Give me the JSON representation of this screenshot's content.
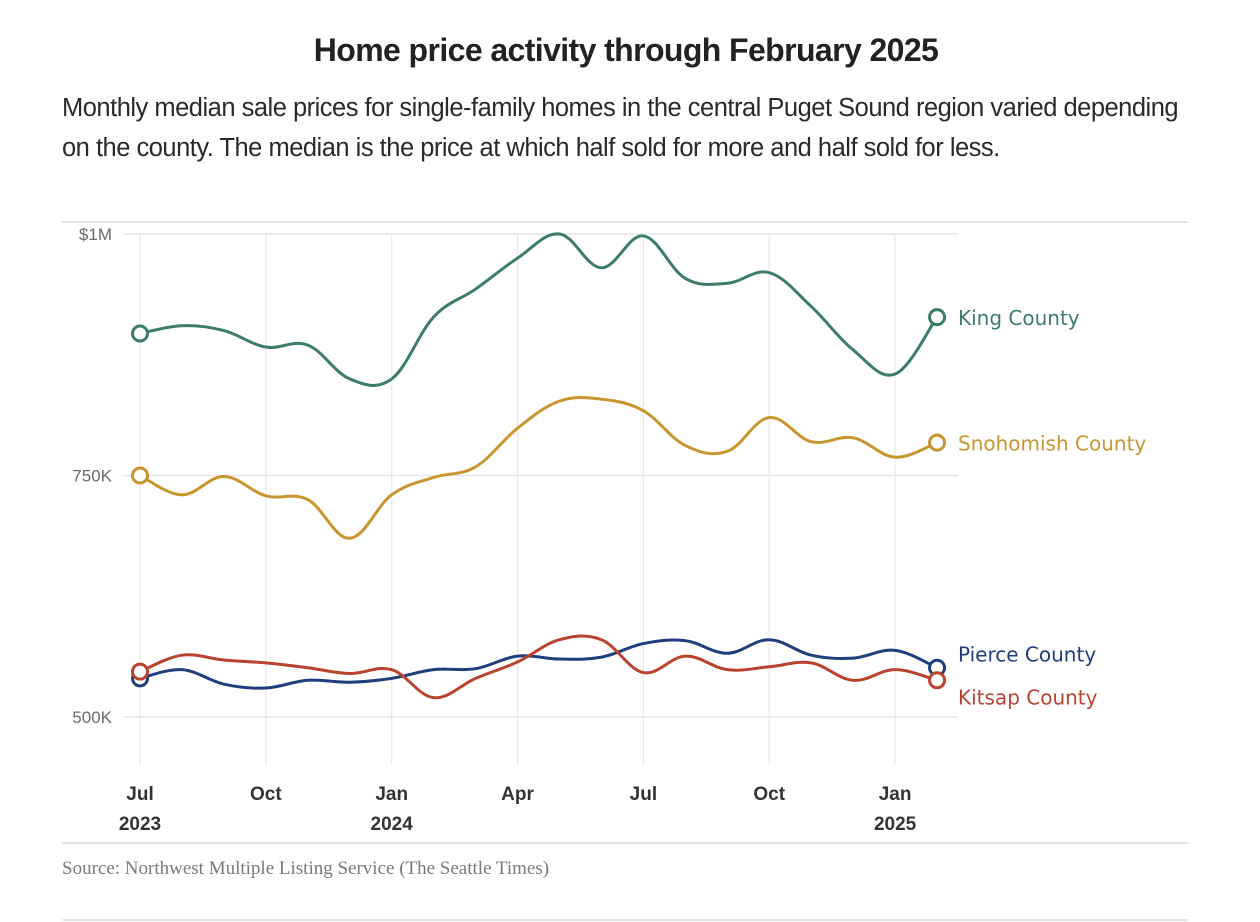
{
  "chart_data": {
    "type": "line",
    "title": "Home price activity through February 2025",
    "subtitle": "Monthly median sale prices for single-family homes in the central Puget Sound region varied depending on the county. The median is the price at which half sold for more and half sold for less.",
    "source": "Source: Northwest Multiple Listing Service (The Seattle Times)",
    "xlabel": "",
    "ylabel": "",
    "ylim": [
      400000,
      1000000
    ],
    "grid": true,
    "x": [
      "2023-07",
      "2023-08",
      "2023-09",
      "2023-10",
      "2023-11",
      "2023-12",
      "2024-01",
      "2024-02",
      "2024-03",
      "2024-04",
      "2024-05",
      "2024-06",
      "2024-07",
      "2024-08",
      "2024-09",
      "2024-10",
      "2024-11",
      "2024-12",
      "2025-01",
      "2025-02"
    ],
    "y_ticks": [
      {
        "value": 1000000,
        "label": "$1M"
      },
      {
        "value": 750000,
        "label": "750K"
      },
      {
        "value": 500000,
        "label": "500K"
      }
    ],
    "x_ticks": [
      {
        "index": 0,
        "label": "Jul",
        "year": "2023"
      },
      {
        "index": 3,
        "label": "Oct",
        "year": ""
      },
      {
        "index": 6,
        "label": "Jan",
        "year": "2024"
      },
      {
        "index": 9,
        "label": "Apr",
        "year": ""
      },
      {
        "index": 12,
        "label": "Jul",
        "year": ""
      },
      {
        "index": 15,
        "label": "Oct",
        "year": ""
      },
      {
        "index": 18,
        "label": "Jan",
        "year": "2025"
      }
    ],
    "legend": "direct-labels-right",
    "series": [
      {
        "name": "King County",
        "color": "#3b7d65",
        "values": [
          897000,
          905000,
          900000,
          883000,
          885000,
          850000,
          850000,
          914000,
          943000,
          975000,
          1000000,
          965000,
          998000,
          954000,
          949000,
          960000,
          925000,
          880000,
          855000,
          914000
        ]
      },
      {
        "name": "Snohomish County",
        "color": "#c8962f",
        "values": [
          750000,
          730000,
          749000,
          729000,
          725000,
          685000,
          730000,
          748000,
          759000,
          799000,
          827000,
          829000,
          817000,
          781000,
          775000,
          810000,
          785000,
          789000,
          769000,
          784000
        ]
      },
      {
        "name": "Pierce County",
        "color": "#1f3f7c",
        "values": [
          540000,
          549000,
          534000,
          530000,
          538000,
          536000,
          540000,
          549000,
          550000,
          563000,
          560000,
          562000,
          576000,
          579000,
          566000,
          580000,
          564000,
          561000,
          569000,
          551000
        ]
      },
      {
        "name": "Kitsap County",
        "color": "#b9432f",
        "values": [
          547000,
          564000,
          559000,
          556000,
          551000,
          545000,
          549000,
          520000,
          540000,
          557000,
          580000,
          580000,
          546000,
          563000,
          549000,
          552000,
          556000,
          538000,
          549000,
          538000
        ]
      }
    ]
  }
}
